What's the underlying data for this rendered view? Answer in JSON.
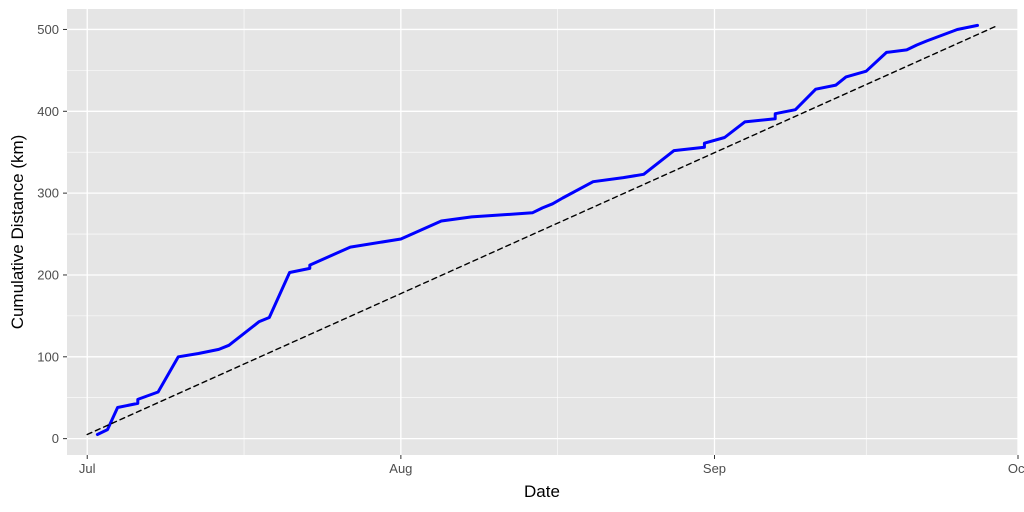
{
  "chart_data": {
    "type": "line",
    "title": "",
    "xlabel": "Date",
    "ylabel": "Cumulative Distance (km)",
    "x_ticks": [
      "Jul",
      "Aug",
      "Sep",
      "Oct"
    ],
    "y_ticks": [
      0,
      100,
      200,
      300,
      400,
      500
    ],
    "xlim": [
      "2023-06-29",
      "2023-10-01"
    ],
    "ylim": [
      -20,
      525
    ],
    "grid": true,
    "legend": "none",
    "colors": {
      "panel_background": "#e5e5e5",
      "grid": "#ffffff",
      "actual_line": "#0000ff",
      "reference_line": "#000000"
    },
    "series": [
      {
        "style": "solid",
        "x": [
          "2023-07-02",
          "2023-07-03",
          "2023-07-04",
          "2023-07-06",
          "2023-07-06",
          "2023-07-08",
          "2023-07-10",
          "2023-07-12",
          "2023-07-14",
          "2023-07-15",
          "2023-07-18",
          "2023-07-19",
          "2023-07-21",
          "2023-07-23",
          "2023-07-23",
          "2023-07-25",
          "2023-07-27",
          "2023-08-01",
          "2023-08-05",
          "2023-08-08",
          "2023-08-14",
          "2023-08-15",
          "2023-08-16",
          "2023-08-17",
          "2023-08-20",
          "2023-08-23",
          "2023-08-25",
          "2023-08-28",
          "2023-08-31",
          "2023-08-31",
          "2023-09-02",
          "2023-09-04",
          "2023-09-07",
          "2023-09-07",
          "2023-09-09",
          "2023-09-11",
          "2023-09-13",
          "2023-09-14",
          "2023-09-16",
          "2023-09-18",
          "2023-09-20",
          "2023-09-21",
          "2023-09-22",
          "2023-09-25",
          "2023-09-27"
        ],
        "y": [
          5,
          11,
          38,
          43,
          48,
          57,
          100,
          104,
          109,
          114,
          143,
          148,
          203,
          208,
          212,
          223,
          234,
          244,
          266,
          271,
          276,
          282,
          287,
          294,
          314,
          319,
          323,
          352,
          356,
          361,
          368,
          387,
          391,
          397,
          402,
          427,
          432,
          442,
          449,
          472,
          475,
          481,
          486,
          500,
          505
        ]
      },
      {
        "style": "dashed",
        "x": [
          "2023-07-01",
          "2023-09-29"
        ],
        "y": [
          5,
          505
        ]
      }
    ]
  }
}
